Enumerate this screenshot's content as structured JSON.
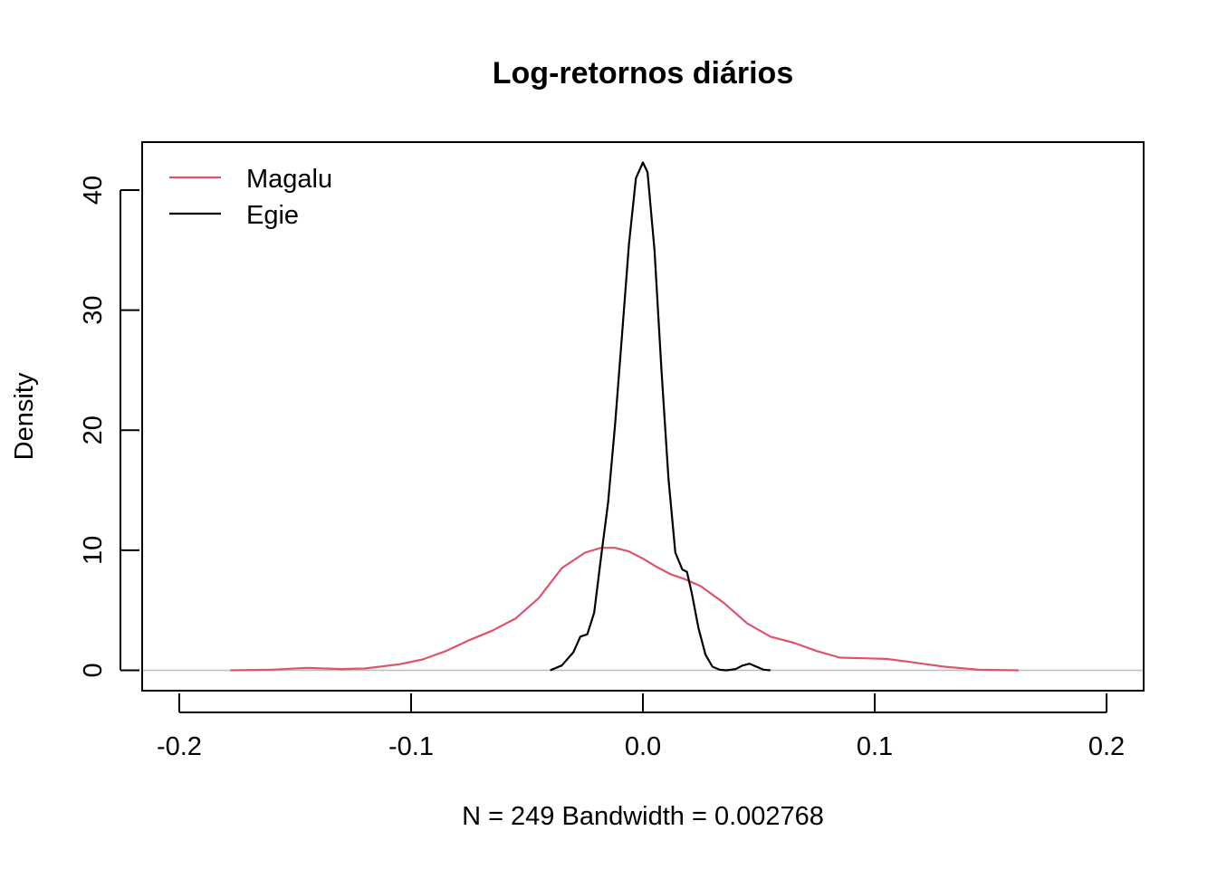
{
  "chart_data": {
    "type": "line",
    "title": "Log-retornos diários",
    "xlabel": "N = 249   Bandwidth = 0.002768",
    "ylabel": "Density",
    "xlim": [
      -0.216,
      0.216
    ],
    "ylim": [
      -1.7,
      44.0
    ],
    "x_ticks": [
      -0.2,
      -0.1,
      0.0,
      0.1,
      0.2
    ],
    "x_tick_labels": [
      "-0.2",
      "-0.1",
      "0.0",
      "0.1",
      "0.2"
    ],
    "y_ticks": [
      0,
      10,
      20,
      30,
      40
    ],
    "y_tick_labels": [
      "0",
      "10",
      "20",
      "30",
      "40"
    ],
    "baseline_color": "#bebebe",
    "legend": {
      "position": "top-left"
    },
    "series": [
      {
        "name": "Magalu",
        "color": "#DF536B",
        "x": [
          -0.178,
          -0.16,
          -0.145,
          -0.13,
          -0.12,
          -0.105,
          -0.095,
          -0.085,
          -0.075,
          -0.065,
          -0.055,
          -0.045,
          -0.035,
          -0.025,
          -0.018,
          -0.012,
          -0.006,
          0.0,
          0.006,
          0.012,
          0.018,
          0.025,
          0.035,
          0.045,
          0.055,
          0.065,
          0.075,
          0.085,
          0.095,
          0.105,
          0.115,
          0.13,
          0.145,
          0.162
        ],
        "values": [
          0.0,
          0.05,
          0.2,
          0.1,
          0.15,
          0.5,
          0.9,
          1.6,
          2.5,
          3.3,
          4.3,
          6.0,
          8.5,
          9.8,
          10.2,
          10.2,
          9.9,
          9.3,
          8.6,
          8.0,
          7.6,
          7.0,
          5.6,
          3.9,
          2.8,
          2.3,
          1.6,
          1.05,
          1.0,
          0.95,
          0.7,
          0.3,
          0.05,
          0.0
        ]
      },
      {
        "name": "Egie",
        "color": "#000000",
        "x": [
          -0.04,
          -0.035,
          -0.03,
          -0.027,
          -0.024,
          -0.021,
          -0.018,
          -0.015,
          -0.012,
          -0.009,
          -0.006,
          -0.003,
          0.0,
          0.002,
          0.005,
          0.008,
          0.011,
          0.014,
          0.017,
          0.019,
          0.021,
          0.024,
          0.027,
          0.03,
          0.033,
          0.036,
          0.04,
          0.043,
          0.046,
          0.049,
          0.052,
          0.055
        ],
        "values": [
          0.0,
          0.4,
          1.5,
          2.8,
          3.0,
          4.8,
          9.5,
          14.0,
          20.5,
          28.0,
          35.5,
          41.0,
          42.3,
          41.5,
          35.0,
          25.0,
          16.0,
          9.8,
          8.4,
          8.2,
          6.5,
          3.5,
          1.3,
          0.3,
          0.05,
          0.0,
          0.1,
          0.4,
          0.55,
          0.3,
          0.05,
          0.0
        ]
      }
    ]
  }
}
